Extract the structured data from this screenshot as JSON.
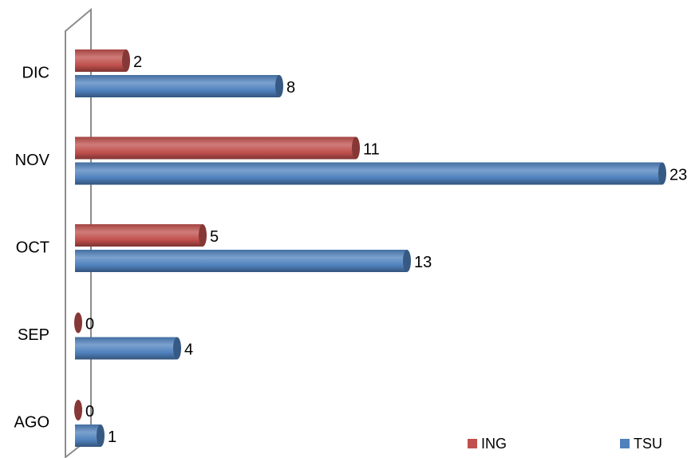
{
  "chart_data": {
    "type": "bar",
    "orientation": "horizontal",
    "style": "3d-cylinder",
    "categories": [
      "DIC",
      "NOV",
      "OCT",
      "SEP",
      "AGO"
    ],
    "series": [
      {
        "name": "ING",
        "values": [
          2,
          11,
          5,
          0,
          0
        ],
        "color": "#C0504D"
      },
      {
        "name": "TSU",
        "values": [
          8,
          23,
          13,
          4,
          1
        ],
        "color": "#4F81BD"
      }
    ],
    "xlim": [
      0,
      23
    ],
    "grid": false,
    "legend_position": "bottom-right",
    "title": "",
    "xlabel": "",
    "ylabel": ""
  }
}
